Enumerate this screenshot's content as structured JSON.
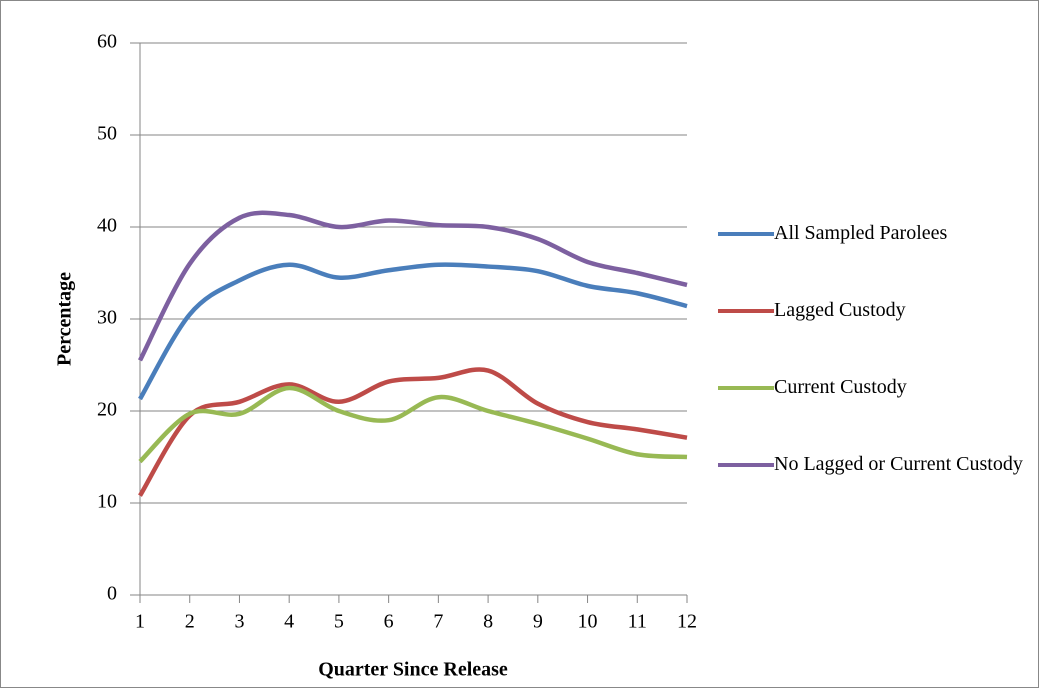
{
  "chart_data": {
    "type": "line",
    "x_label": "Quarter Since Release",
    "y_label": "Percentage",
    "x": [
      1,
      2,
      3,
      4,
      5,
      6,
      7,
      8,
      9,
      10,
      11,
      12
    ],
    "xlim": [
      1,
      12
    ],
    "xticks": [
      1,
      2,
      3,
      4,
      5,
      6,
      7,
      8,
      9,
      10,
      11,
      12
    ],
    "ylim": [
      0,
      60
    ],
    "yticks": [
      0,
      10,
      20,
      30,
      40,
      50,
      60
    ],
    "grid": true,
    "legend": "right",
    "smooth": true,
    "series": [
      {
        "name": "All Sampled Parolees",
        "color": "#4a7ebb",
        "values": [
          21.3,
          30.5,
          34.2,
          35.9,
          34.5,
          35.3,
          35.9,
          35.7,
          35.2,
          33.6,
          32.8,
          31.4
        ]
      },
      {
        "name": "Lagged Custody",
        "color": "#be4b48",
        "values": [
          10.8,
          19.5,
          21,
          22.9,
          21,
          23.2,
          23.6,
          24.4,
          20.8,
          18.8,
          18,
          17.1
        ]
      },
      {
        "name": "Current Custody",
        "color": "#98b954",
        "values": [
          14.5,
          19.7,
          19.7,
          22.5,
          20,
          19,
          21.5,
          20,
          18.6,
          17,
          15.3,
          15
        ]
      },
      {
        "name": "No Lagged or Current Custody",
        "color": "#7d60a0",
        "values": [
          25.5,
          36,
          41,
          41.3,
          40,
          40.7,
          40.2,
          40,
          38.7,
          36.2,
          35,
          33.7
        ]
      }
    ]
  }
}
